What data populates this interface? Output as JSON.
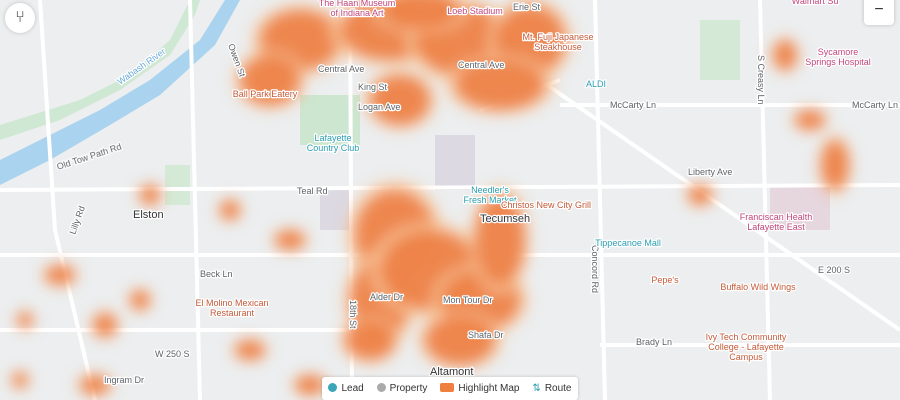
{
  "places": [
    "Elston",
    "Tecumseh",
    "Altamont"
  ],
  "roads": [
    "Old Tow Path Rd",
    "Central Ave",
    "Central Ave",
    "King St",
    "Logan Ave",
    "Owen St",
    "Erie St",
    "McCarty Ln",
    "McCarty Ln",
    "Teal Rd",
    "Concord Rd",
    "Liberty Ave",
    "Beck Ln",
    "E 200 S",
    "Brady Ln",
    "W 250 S",
    "Ingram Dr",
    "18th St",
    "Alder Dr",
    "Mon Tour Dr",
    "Shafa Dr",
    "S Creasy Ln",
    "Lilly Rd"
  ],
  "water": [
    "Wabash River"
  ],
  "pois": [
    {
      "lines": [
        "The Haan Museum",
        "of Indiana Art"
      ]
    },
    {
      "lines": [
        "Loeb Stadium"
      ]
    },
    {
      "lines": [
        "Mt. Fuji Japanese",
        "Steakhouse"
      ]
    },
    {
      "lines": [
        "Walmart Su"
      ]
    },
    {
      "lines": [
        "Sycamore",
        "Springs Hospital"
      ]
    },
    {
      "lines": [
        "ALDI"
      ]
    },
    {
      "lines": [
        "Ball Park Eatery"
      ]
    },
    {
      "lines": [
        "Lafayette",
        "Country Club"
      ]
    },
    {
      "lines": [
        "Needler's",
        "Fresh Market"
      ]
    },
    {
      "lines": [
        "Christos New City Grill"
      ]
    },
    {
      "lines": [
        "Tippecanoe Mall"
      ]
    },
    {
      "lines": [
        "Franciscan Health",
        "Lafayette East"
      ]
    },
    {
      "lines": [
        "El Molino Mexican",
        "Restaurant"
      ]
    },
    {
      "lines": [
        "Pepe's"
      ]
    },
    {
      "lines": [
        "Buffalo Wild Wings"
      ]
    },
    {
      "lines": [
        "Ivy Tech Community",
        "College - Lafayette",
        "Campus"
      ]
    }
  ],
  "legend": {
    "items": [
      "Lead",
      "Property",
      "Highlight Map",
      "Route"
    ]
  }
}
